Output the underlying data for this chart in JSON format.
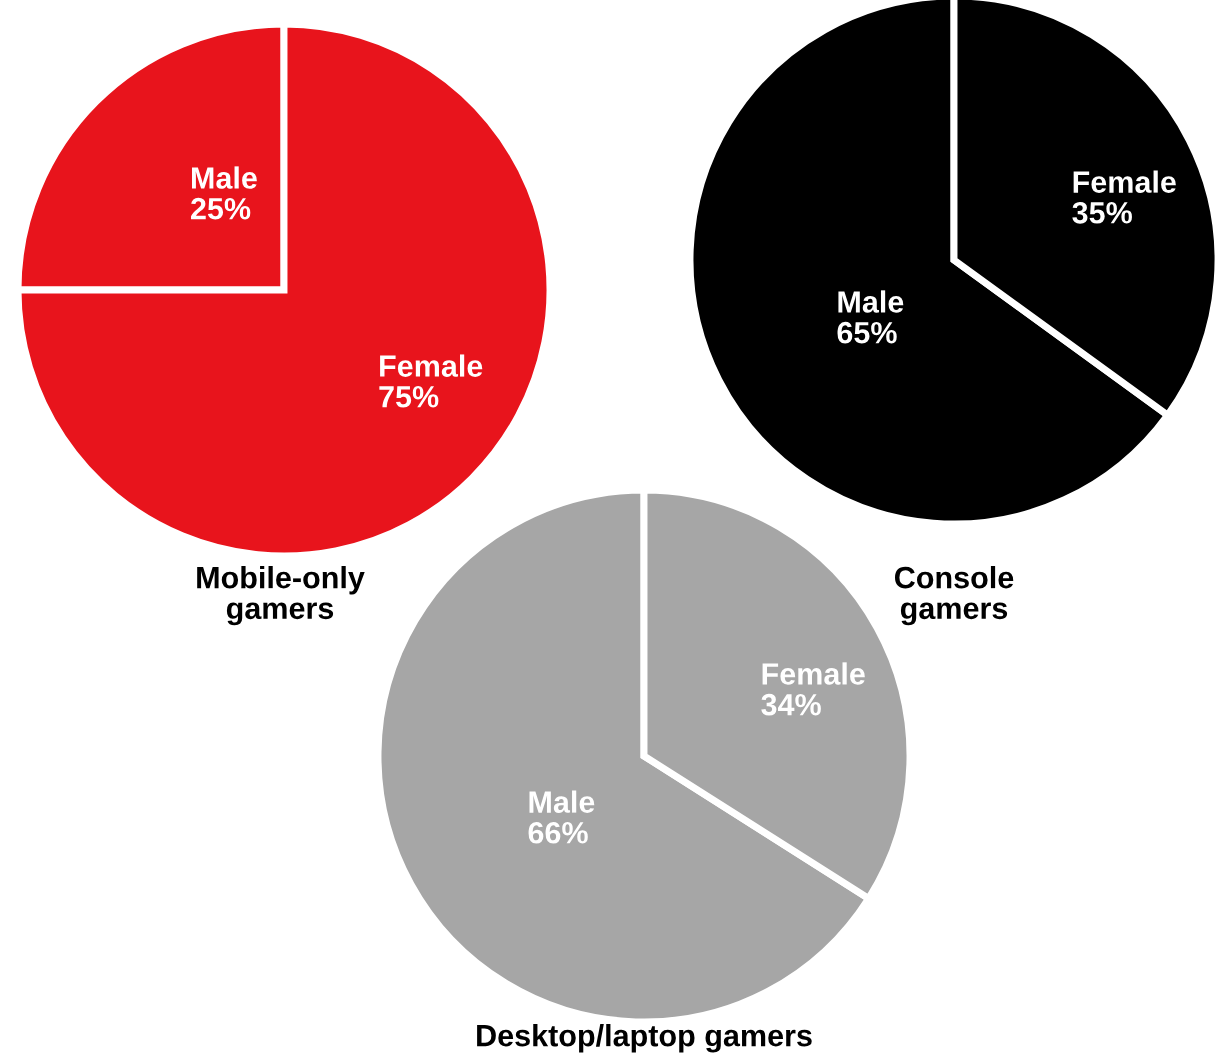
{
  "chart_data": [
    {
      "type": "pie",
      "title": "Mobile-only\ngamers",
      "categories": [
        "Male",
        "Female"
      ],
      "values": [
        25,
        75
      ],
      "value_labels": [
        "25%",
        "75%"
      ],
      "colors": [
        "#e8141c",
        "#e8141c"
      ],
      "legend": false
    },
    {
      "type": "pie",
      "title": "Console\ngamers",
      "categories": [
        "Male",
        "Female"
      ],
      "values": [
        65,
        35
      ],
      "value_labels": [
        "65%",
        "35%"
      ],
      "colors": [
        "#000000",
        "#000000"
      ],
      "legend": false
    },
    {
      "type": "pie",
      "title": "Desktop/laptop gamers",
      "categories": [
        "Male",
        "Female"
      ],
      "values": [
        66,
        34
      ],
      "value_labels": [
        "66%",
        "34%"
      ],
      "colors": [
        "#a6a6a6",
        "#a6a6a6"
      ],
      "legend": false
    }
  ]
}
